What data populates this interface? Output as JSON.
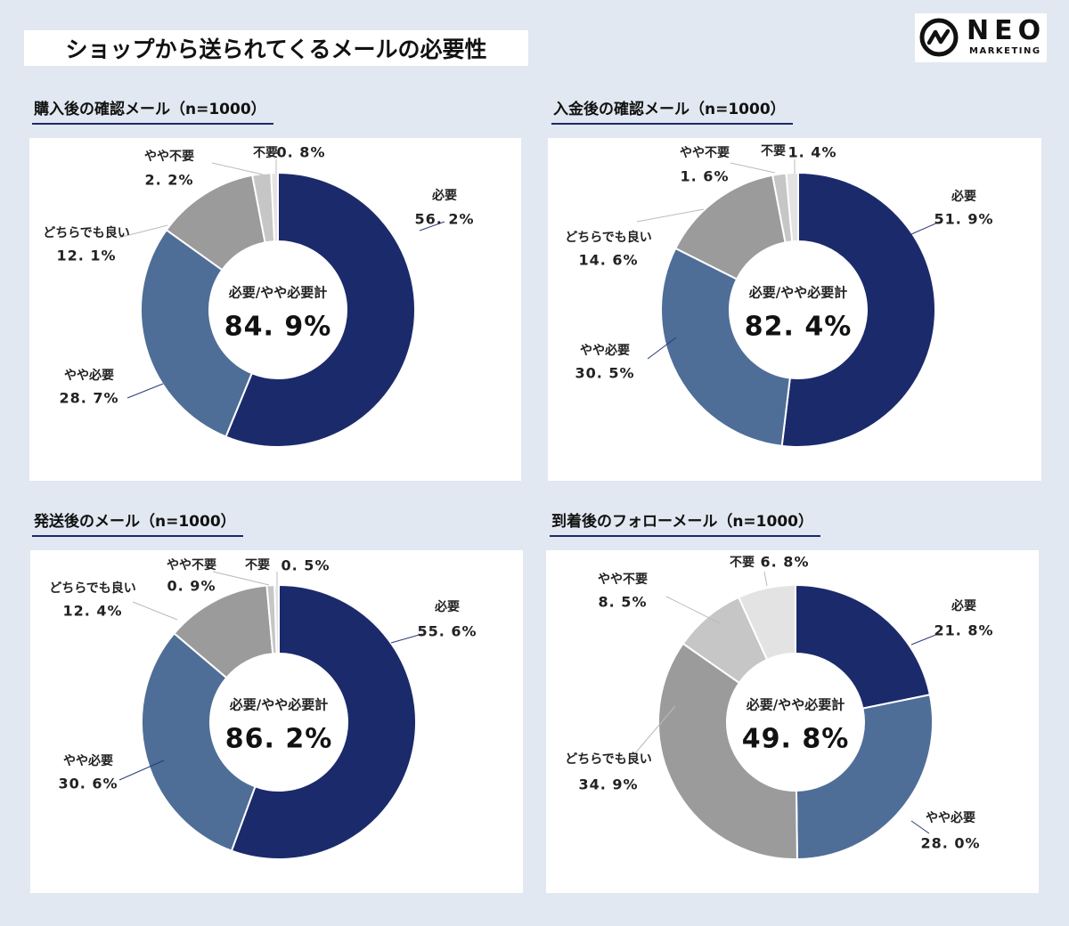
{
  "header": {
    "title": "ショップから送られてくるメールの必要性"
  },
  "logo": {
    "name": "NEO",
    "sub": "MARKETING"
  },
  "colors": {
    "need": "#1b2a6b",
    "somewhat_need": "#4e6e97",
    "either": "#9b9b9b",
    "somewhat_unneeded": "#c6c6c6",
    "unneeded": "#e3e3e3"
  },
  "chart_data": [
    {
      "type": "pie",
      "title": "購入後の確認メール（n=1000）",
      "center_caption": "必要/やや必要計",
      "center_value": "84.9%",
      "slices": [
        {
          "name": "必要",
          "value": 56.2,
          "label": "56.2%"
        },
        {
          "name": "やや必要",
          "value": 28.7,
          "label": "28.7%"
        },
        {
          "name": "どちらでも良い",
          "value": 12.1,
          "label": "12.1%"
        },
        {
          "name": "やや不要",
          "value": 2.2,
          "label": "2.2%"
        },
        {
          "name": "不要",
          "value": 0.8,
          "label": "0.8%"
        }
      ]
    },
    {
      "type": "pie",
      "title": "入金後の確認メール（n=1000）",
      "center_caption": "必要/やや必要計",
      "center_value": "82.4%",
      "slices": [
        {
          "name": "必要",
          "value": 51.9,
          "label": "51.9%"
        },
        {
          "name": "やや必要",
          "value": 30.5,
          "label": "30.5%"
        },
        {
          "name": "どちらでも良い",
          "value": 14.6,
          "label": "14.6%"
        },
        {
          "name": "やや不要",
          "value": 1.6,
          "label": "1.6%"
        },
        {
          "name": "不要",
          "value": 1.4,
          "label": "1.4%"
        }
      ]
    },
    {
      "type": "pie",
      "title": "発送後のメール（n=1000）",
      "center_caption": "必要/やや必要計",
      "center_value": "86.2%",
      "slices": [
        {
          "name": "必要",
          "value": 55.6,
          "label": "55.6%"
        },
        {
          "name": "やや必要",
          "value": 30.6,
          "label": "30.6%"
        },
        {
          "name": "どちらでも良い",
          "value": 12.4,
          "label": "12.4%"
        },
        {
          "name": "やや不要",
          "value": 0.9,
          "label": "0.9%"
        },
        {
          "name": "不要",
          "value": 0.5,
          "label": "0.5%"
        }
      ]
    },
    {
      "type": "pie",
      "title": "到着後のフォローメール（n=1000）",
      "center_caption": "必要/やや必要計",
      "center_value": "49.8%",
      "slices": [
        {
          "name": "必要",
          "value": 21.8,
          "label": "21.8%"
        },
        {
          "name": "やや必要",
          "value": 28.0,
          "label": "28.0%"
        },
        {
          "name": "どちらでも良い",
          "value": 34.9,
          "label": "34.9%"
        },
        {
          "name": "やや不要",
          "value": 8.5,
          "label": "8.5%"
        },
        {
          "name": "不要",
          "value": 6.8,
          "label": "6.8%"
        }
      ]
    }
  ]
}
